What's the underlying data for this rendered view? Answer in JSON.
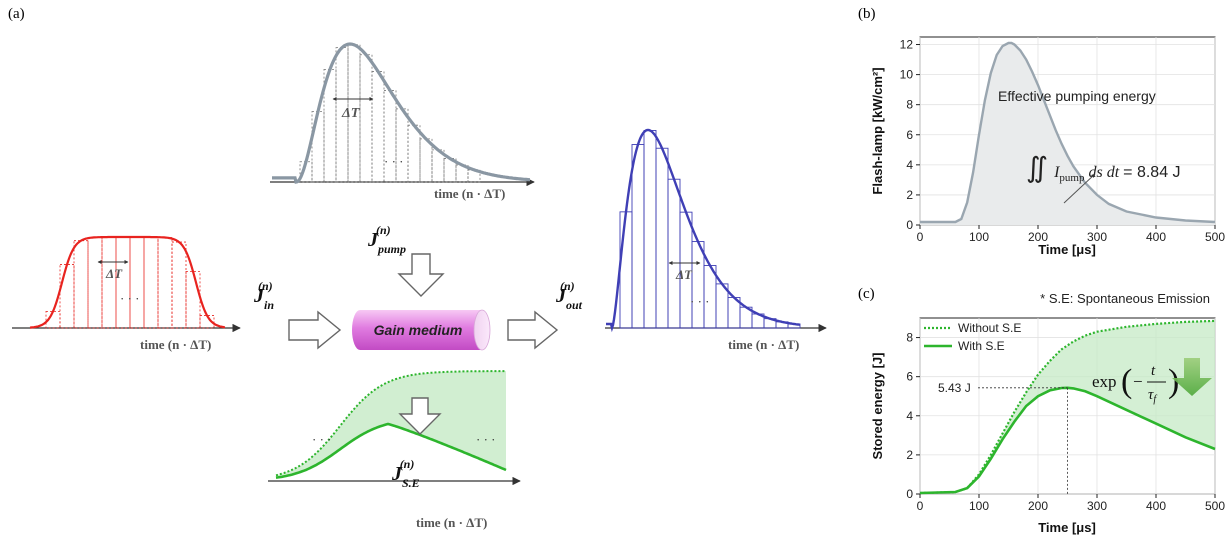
{
  "panels": {
    "a": "(a)",
    "b": "(b)",
    "c": "(c)"
  },
  "diagram": {
    "delta_t": "ΔT",
    "dots": "· · ·",
    "time_axis_label": "time (n · ΔT)",
    "j_in": {
      "base": "J",
      "sub": "in",
      "sup": "(n)"
    },
    "j_pump": {
      "base": "J",
      "sub": "pump",
      "sup": "(n)"
    },
    "j_out": {
      "base": "J",
      "sub": "out",
      "sup": "(n)"
    },
    "j_se": {
      "base": "J",
      "sub": "S.E",
      "sup": "(n)"
    },
    "gain_medium": "Gain medium",
    "colors": {
      "input": "#e8231f",
      "pump": "#8a97a3",
      "output": "#3f3fb5",
      "se": "#2db52d",
      "gain": "#e48be4"
    }
  },
  "chart_data": [
    {
      "type": "area",
      "panel": "(b)",
      "xlabel": "Time [μs]",
      "ylabel": "Flash-lamp [kW/cm²]",
      "xlim": [
        0,
        500
      ],
      "ylim": [
        0,
        12.5
      ],
      "xticks": [
        "0",
        "100",
        "200",
        "300",
        "400",
        "500"
      ],
      "yticks": [
        "0",
        "2",
        "4",
        "6",
        "8",
        "10",
        "12"
      ],
      "grid": true,
      "annotation": "Effective pumping energy",
      "equation": {
        "integral": "∬",
        "var": "I",
        "sub": "pump",
        "tail": "ds dt",
        "value": "= 8.84 J"
      },
      "series": [
        {
          "x": [
            0,
            60,
            70,
            80,
            90,
            100,
            110,
            120,
            130,
            140,
            150,
            155,
            160,
            170,
            180,
            190,
            200,
            210,
            220,
            230,
            240,
            250,
            260,
            280,
            300,
            320,
            350,
            400,
            450,
            500
          ],
          "values": [
            0.2,
            0.2,
            0.4,
            1.5,
            3.5,
            6.0,
            8.3,
            10.1,
            11.3,
            11.9,
            12.1,
            12.1,
            12.0,
            11.6,
            11.0,
            10.2,
            9.3,
            8.3,
            7.3,
            6.3,
            5.4,
            4.6,
            3.9,
            2.8,
            2.0,
            1.4,
            0.9,
            0.5,
            0.3,
            0.2
          ]
        }
      ]
    },
    {
      "type": "line",
      "panel": "(c)",
      "title": "* S.E: Spontaneous Emission",
      "xlabel": "Time [μs]",
      "ylabel": "Stored energy [J]",
      "xlim": [
        0,
        500
      ],
      "ylim": [
        0,
        9
      ],
      "xticks": [
        "0",
        "100",
        "200",
        "300",
        "400",
        "500"
      ],
      "yticks": [
        "0",
        "2",
        "4",
        "6",
        "8"
      ],
      "grid": true,
      "legend": "top-left",
      "marker_label": "5.43 J",
      "marker": {
        "x": 250,
        "y": 5.43
      },
      "decay_label": {
        "prefix": "exp",
        "minus": "−",
        "num": "t",
        "den": "τ",
        "den_sub": "f"
      },
      "series": [
        {
          "name": "Without S.E",
          "style": "dotted",
          "x": [
            0,
            60,
            80,
            100,
            120,
            140,
            160,
            180,
            200,
            220,
            240,
            260,
            280,
            300,
            350,
            400,
            450,
            500
          ],
          "values": [
            0.05,
            0.1,
            0.3,
            1.0,
            2.0,
            3.1,
            4.2,
            5.2,
            6.1,
            6.8,
            7.4,
            7.8,
            8.1,
            8.3,
            8.55,
            8.7,
            8.8,
            8.85
          ]
        },
        {
          "name": "With S.E",
          "style": "solid",
          "x": [
            0,
            60,
            80,
            100,
            120,
            140,
            160,
            180,
            200,
            220,
            240,
            250,
            260,
            280,
            300,
            350,
            400,
            450,
            500
          ],
          "values": [
            0.05,
            0.1,
            0.3,
            0.9,
            1.8,
            2.8,
            3.7,
            4.5,
            5.0,
            5.3,
            5.42,
            5.43,
            5.4,
            5.25,
            5.0,
            4.3,
            3.6,
            2.9,
            2.3
          ]
        }
      ]
    }
  ]
}
